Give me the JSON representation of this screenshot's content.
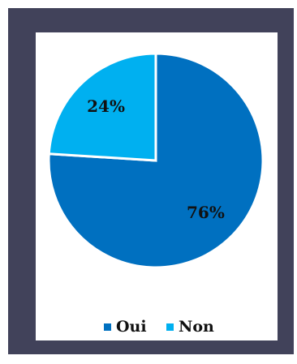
{
  "chart_data": {
    "type": "pie",
    "categories": [
      "Oui",
      "Non"
    ],
    "values": [
      76,
      24
    ],
    "value_labels": [
      "76%",
      "24%"
    ],
    "colors": [
      "#0070c0",
      "#00b0f0"
    ],
    "legend": "bottom"
  }
}
